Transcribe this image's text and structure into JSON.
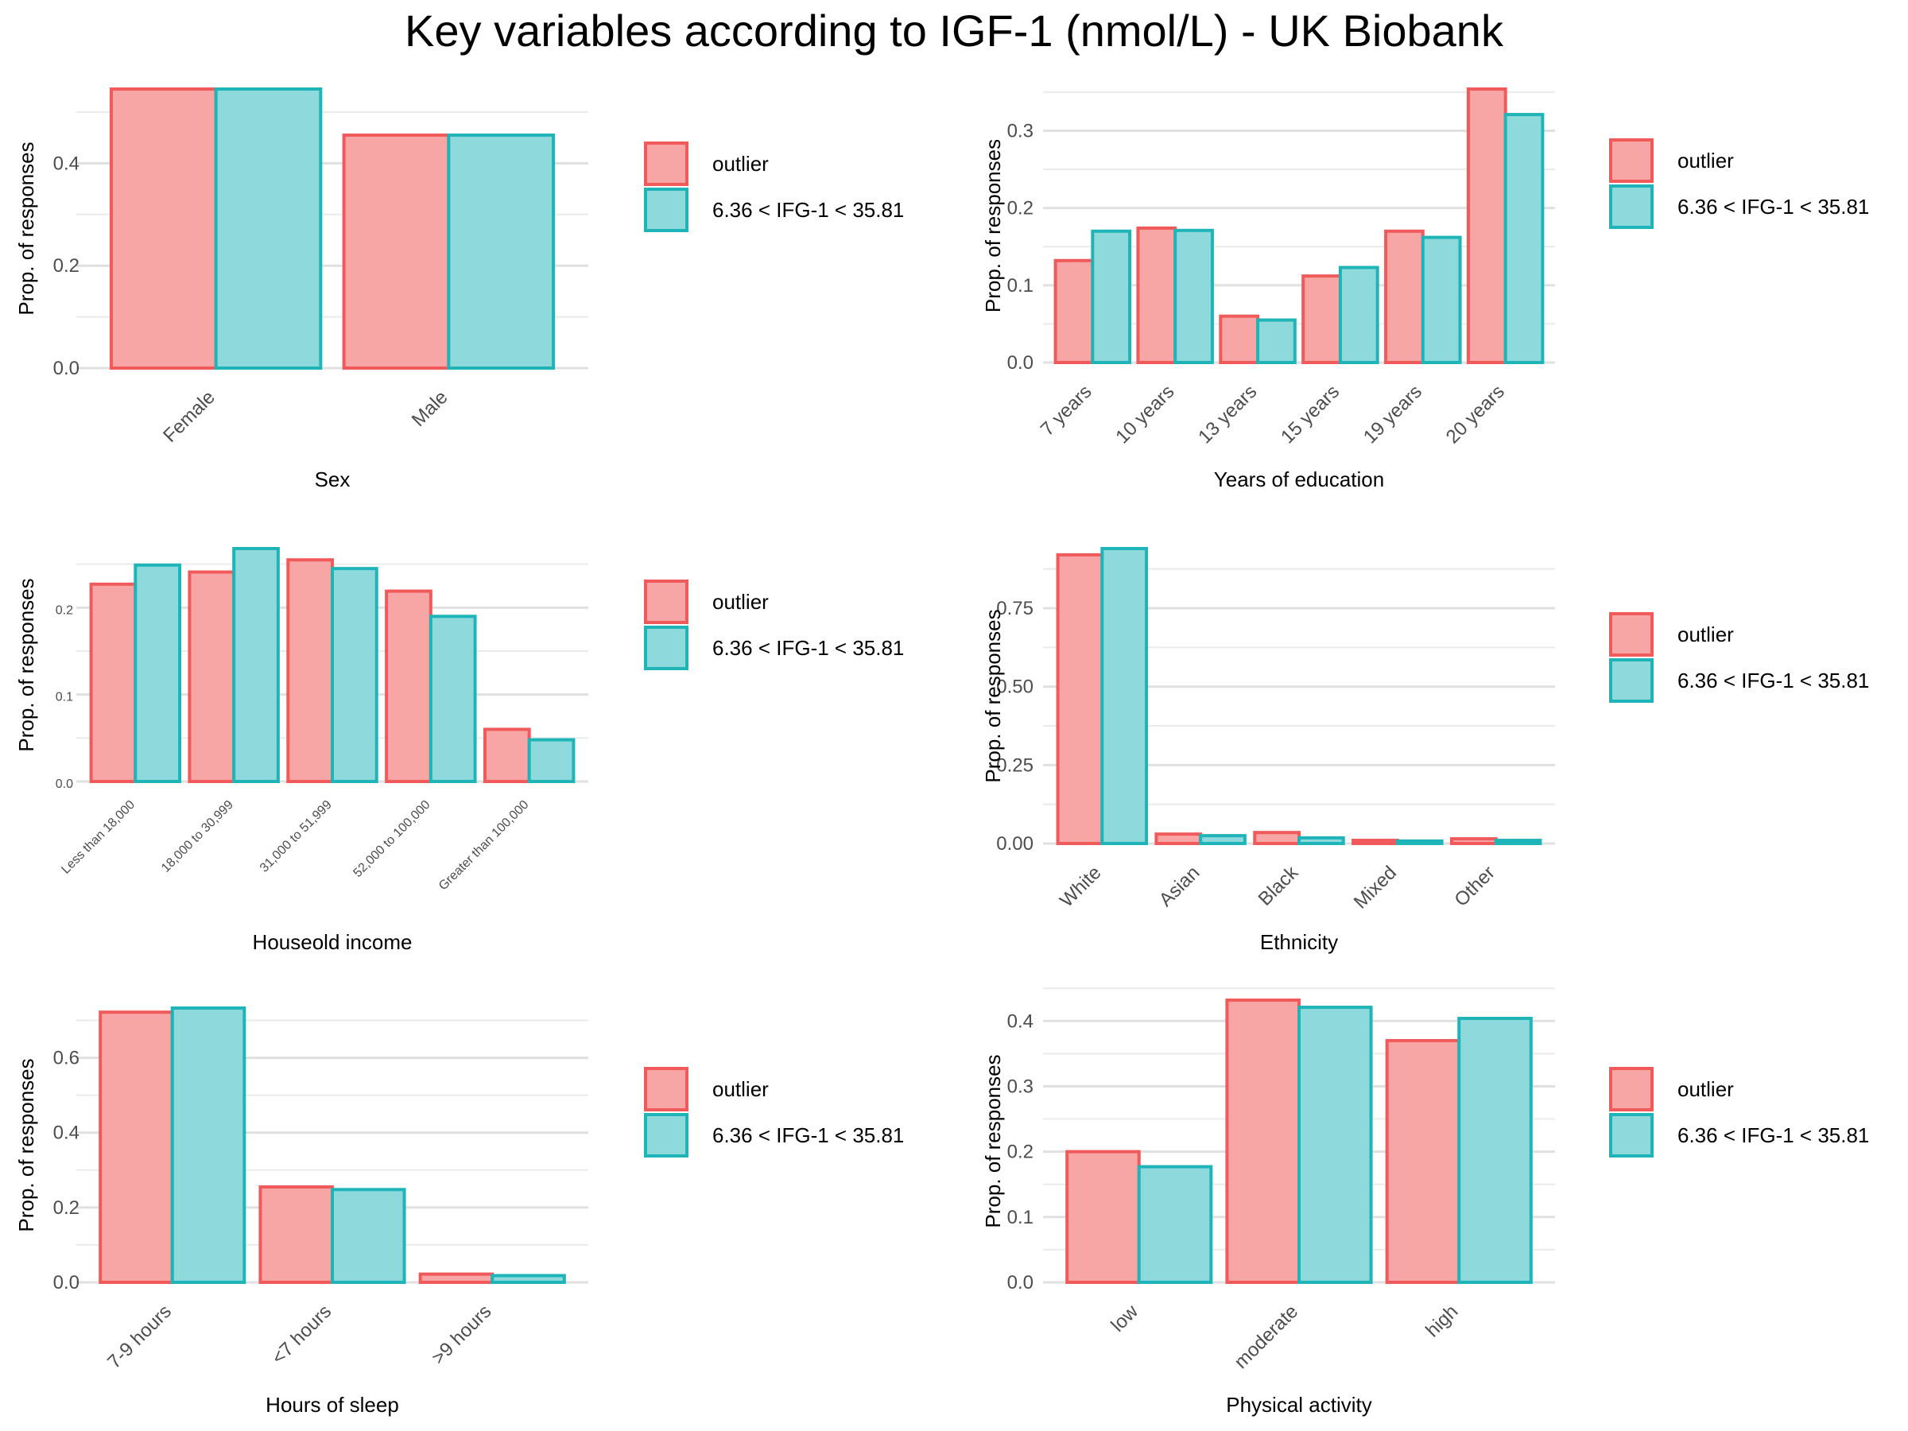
{
  "title": "Key variables according to IGF-1 (nmol/L) - UK Biobank",
  "legend": {
    "entries": [
      "outlier",
      "6.36 < IFG-1 < 35.81"
    ],
    "placement": "right",
    "fill_colors": [
      "#F8A5A5",
      "#8DD9DB"
    ],
    "stroke_colors": [
      "#F05A5A",
      "#1FB5B8"
    ]
  },
  "chart_data": [
    {
      "type": "bar",
      "ylabel": "Prop. of responses",
      "xlabel": "Sex",
      "categories": [
        "Female",
        "Male"
      ],
      "series": [
        {
          "name": "outlier",
          "values": [
            0.545,
            0.455
          ]
        },
        {
          "name": "6.36 < IFG-1 < 35.81",
          "values": [
            0.545,
            0.455
          ]
        }
      ],
      "yticks": [
        0.0,
        0.2,
        0.4
      ],
      "ytick_labels": [
        "0.0",
        "0.2",
        "0.4"
      ],
      "ylim": [
        0,
        0.545
      ],
      "grid": true
    },
    {
      "type": "bar",
      "ylabel": "Prop. of responses",
      "xlabel": "Years of education",
      "categories": [
        "7 years",
        "10 years",
        "13 years",
        "15 years",
        "19 years",
        "20 years"
      ],
      "series": [
        {
          "name": "outlier",
          "values": [
            0.132,
            0.174,
            0.06,
            0.112,
            0.17,
            0.354
          ]
        },
        {
          "name": "6.36 < IFG-1 < 35.81",
          "values": [
            0.17,
            0.171,
            0.055,
            0.123,
            0.162,
            0.321
          ]
        }
      ],
      "yticks": [
        0.0,
        0.1,
        0.2,
        0.3
      ],
      "ytick_labels": [
        "0.0",
        "0.1",
        "0.2",
        "0.3"
      ],
      "ylim": [
        0,
        0.354
      ],
      "grid": true
    },
    {
      "type": "bar",
      "ylabel": "Prop. of responses",
      "xlabel": "Houseold income",
      "categories": [
        "Less than 18,000",
        "18,000 to 30,999",
        "31,000 to 51,999",
        "52,000 to 100,000",
        "Greater than 100,000"
      ],
      "series": [
        {
          "name": "outlier",
          "values": [
            0.227,
            0.241,
            0.255,
            0.219,
            0.06
          ]
        },
        {
          "name": "6.36 < IFG-1 < 35.81",
          "values": [
            0.249,
            0.268,
            0.245,
            0.19,
            0.048
          ]
        }
      ],
      "yticks": [
        0.0,
        0.1,
        0.2
      ],
      "ytick_labels": [
        "0.0",
        "0.1",
        "0.2"
      ],
      "ylim": [
        0,
        0.268
      ],
      "grid": true
    },
    {
      "type": "bar",
      "ylabel": "Prop. of responses",
      "xlabel": "Ethnicity",
      "categories": [
        "White",
        "Asian",
        "Black",
        "Mixed",
        "Other"
      ],
      "series": [
        {
          "name": "outlier",
          "values": [
            0.92,
            0.03,
            0.035,
            0.01,
            0.015
          ]
        },
        {
          "name": "6.36 < IFG-1 < 35.81",
          "values": [
            0.94,
            0.025,
            0.018,
            0.008,
            0.01
          ]
        }
      ],
      "yticks": [
        0.0,
        0.25,
        0.5,
        0.75
      ],
      "ytick_labels": [
        "0.00",
        "0.25",
        "0.50",
        "0.75"
      ],
      "ylim": [
        0,
        0.94
      ],
      "grid": true
    },
    {
      "type": "bar",
      "ylabel": "Prop. of responses",
      "xlabel": "Hours of sleep",
      "categories": [
        "7-9 hours",
        "<7 hours",
        ">9 hours"
      ],
      "series": [
        {
          "name": "outlier",
          "values": [
            0.722,
            0.255,
            0.022
          ]
        },
        {
          "name": "6.36 < IFG-1 < 35.81",
          "values": [
            0.733,
            0.248,
            0.018
          ]
        }
      ],
      "yticks": [
        0.0,
        0.2,
        0.4,
        0.6
      ],
      "ytick_labels": [
        "0.0",
        "0.2",
        "0.4",
        "0.6"
      ],
      "ylim": [
        0,
        0.733
      ],
      "grid": true
    },
    {
      "type": "bar",
      "ylabel": "Prop. of responses",
      "xlabel": "Physical activity",
      "categories": [
        "low",
        "moderate",
        "high"
      ],
      "series": [
        {
          "name": "outlier",
          "values": [
            0.2,
            0.432,
            0.37
          ]
        },
        {
          "name": "6.36 < IFG-1 < 35.81",
          "values": [
            0.177,
            0.421,
            0.404
          ]
        }
      ],
      "yticks": [
        0.0,
        0.1,
        0.2,
        0.3,
        0.4
      ],
      "ytick_labels": [
        "0.0",
        "0.1",
        "0.2",
        "0.3",
        "0.4"
      ],
      "ylim": [
        0,
        0.432
      ],
      "grid": true
    }
  ]
}
